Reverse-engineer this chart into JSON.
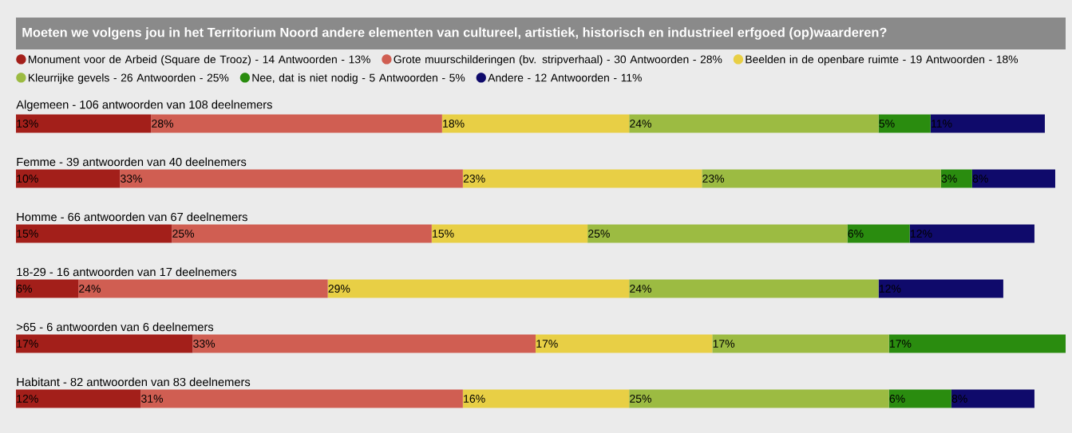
{
  "chart_data": {
    "type": "bar",
    "orientation": "horizontal",
    "stacked": true,
    "legend": "top",
    "title": "Moeten we volgens jou in het Territorium Noord andere elementen van cultureel, artistiek, historisch en industrieel erfgoed (op)waarderen?",
    "categories": [
      "Algemeen - 106 antwoorden van 108 deelnemers",
      "Femme - 39 antwoorden van 40 deelnemers",
      "Homme - 66 antwoorden van 67 deelnemers",
      "18-29 - 16 antwoorden van 17 deelnemers",
      ">65 - 6 antwoorden van 6 deelnemers",
      "Habitant - 82 antwoorden van 83 deelnemers"
    ],
    "series": [
      {
        "name": "Monument voor de Arbeid (Square de Trooz) - 14 Antwoorden - 13%",
        "color": "#a31f1a",
        "values": [
          13,
          10,
          15,
          6,
          17,
          12
        ],
        "value_labels": [
          "13%",
          "10%",
          "15%",
          "6%",
          "17%",
          "12%"
        ]
      },
      {
        "name": "Grote muurschilderingen (bv. stripverhaal) - 30 Antwoorden - 28%",
        "color": "#d05e52",
        "values": [
          28,
          33,
          25,
          24,
          33,
          31
        ],
        "value_labels": [
          "28%",
          "33%",
          "25%",
          "24%",
          "33%",
          "31%"
        ]
      },
      {
        "name": "Beelden in de openbare ruimte - 19 Antwoorden - 18%",
        "color": "#e8cf45",
        "values": [
          18,
          23,
          15,
          29,
          17,
          16
        ],
        "value_labels": [
          "18%",
          "23%",
          "15%",
          "29%",
          "17%",
          "16%"
        ]
      },
      {
        "name": "Kleurrijke gevels - 26 Antwoorden - 25%",
        "color": "#9cbb42",
        "values": [
          24,
          23,
          25,
          24,
          17,
          25
        ],
        "value_labels": [
          "24%",
          "23%",
          "25%",
          "24%",
          "17%",
          "25%"
        ]
      },
      {
        "name": "Nee, dat is niet nodig - 5 Antwoorden - 5%",
        "color": "#2a8c0f",
        "values": [
          5,
          3,
          6,
          null,
          17,
          6
        ],
        "value_labels": [
          "5%",
          "3%",
          "6%",
          null,
          "17%",
          "6%"
        ]
      },
      {
        "name": "Andere - 12 Antwoorden - 11%",
        "color": "#0f0a6b",
        "values": [
          11,
          8,
          12,
          12,
          null,
          8
        ],
        "value_labels": [
          "11%",
          "8%",
          "12%",
          "12%",
          null,
          "8%"
        ]
      }
    ]
  }
}
